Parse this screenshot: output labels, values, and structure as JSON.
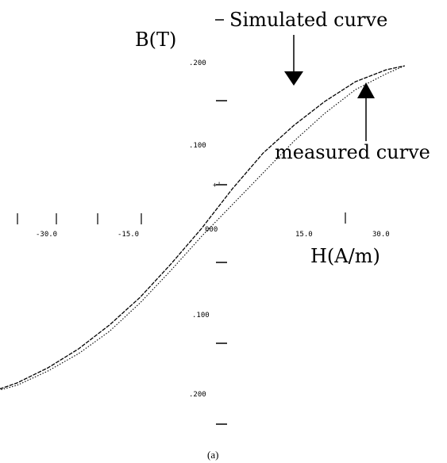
{
  "chart_data": {
    "type": "line",
    "xlabel": "H(A/m)",
    "ylabel": "B(T)",
    "caption": "(a)",
    "x_ticks": [
      "-30.0",
      "-15.0",
      "000",
      "15.0",
      "30.0"
    ],
    "y_ticks": [
      ".200",
      ".100",
      "000",
      ".100",
      ".200"
    ],
    "xlim": [
      -36,
      36
    ],
    "ylim": [
      -0.26,
      0.26
    ],
    "annotations": {
      "simulated": "Simulated curve",
      "measured": "measured curve"
    },
    "series": [
      {
        "name": "Simulated curve",
        "style": "dashed",
        "x": [
          -35.2,
          -30,
          -25,
          -20,
          -15,
          -10,
          -5,
          0,
          5,
          10,
          15,
          20,
          25,
          30,
          33
        ],
        "y": [
          -0.209,
          -0.195,
          -0.176,
          -0.152,
          -0.122,
          -0.087,
          -0.045,
          0.0,
          0.05,
          0.095,
          0.13,
          0.16,
          0.185,
          0.2,
          0.205
        ]
      },
      {
        "name": "measured curve",
        "style": "dotted",
        "x": [
          -35.2,
          -30,
          -25,
          -20,
          -15,
          -10,
          -5,
          0,
          5,
          10,
          15,
          20,
          25,
          30,
          33
        ],
        "y": [
          -0.209,
          -0.198,
          -0.18,
          -0.158,
          -0.13,
          -0.094,
          -0.053,
          -0.01,
          0.03,
          0.07,
          0.11,
          0.145,
          0.175,
          0.195,
          0.205
        ]
      }
    ]
  }
}
